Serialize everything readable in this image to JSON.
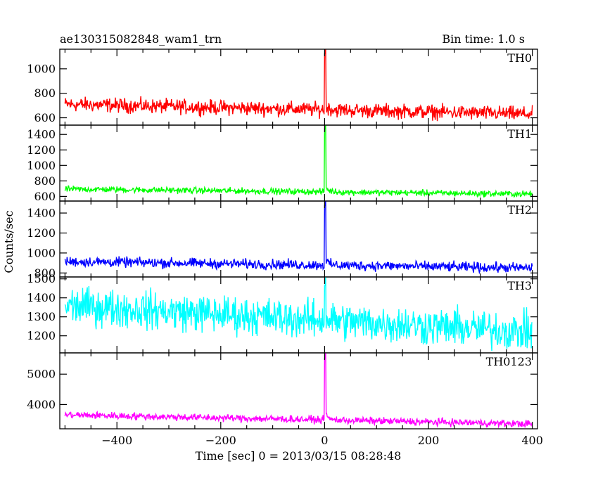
{
  "header": {
    "title": "ae130315082848_wam1_trn",
    "bin_time": "Bin time: 1.0 s"
  },
  "chart_data": {
    "type": "line",
    "ylabel": "Counts/sec",
    "xlabel": "Time [sec] 0 = 2013/03/15 08:28:48",
    "xlim": [
      -510,
      410
    ],
    "xticks": [
      -400,
      -200,
      0,
      200,
      400
    ],
    "panels": [
      {
        "name": "TH0",
        "color": "#ff0000",
        "ylim": [
          540,
          1160
        ],
        "yticks": [
          600,
          800,
          1000
        ],
        "baseline_start": 710,
        "baseline_end": 630,
        "noise_amplitude": 45,
        "peak": 1160,
        "peak_time": 2
      },
      {
        "name": "TH1",
        "color": "#00ff00",
        "ylim": [
          540,
          1520
        ],
        "yticks": [
          600,
          800,
          1000,
          1200,
          1400
        ],
        "baseline_start": 695,
        "baseline_end": 630,
        "noise_amplitude": 30,
        "peak": 1520,
        "peak_time": 2
      },
      {
        "name": "TH2",
        "color": "#0000ff",
        "ylim": [
          760,
          1520
        ],
        "yticks": [
          800,
          1000,
          1200,
          1400
        ],
        "baseline_start": 915,
        "baseline_end": 850,
        "noise_amplitude": 38,
        "peak": 1520,
        "peak_time": 2
      },
      {
        "name": "TH3",
        "color": "#00ffff",
        "ylim": [
          1110,
          1510
        ],
        "yticks": [
          1200,
          1300,
          1400,
          1500
        ],
        "baseline_start": 1360,
        "baseline_end": 1220,
        "noise_amplitude": 75,
        "peak": 1510,
        "peak_time": 2
      },
      {
        "name": "TH0123",
        "color": "#ff00ff",
        "ylim": [
          3200,
          5700
        ],
        "yticks": [
          4000,
          5000
        ],
        "baseline_start": 3660,
        "baseline_end": 3360,
        "noise_amplitude": 90,
        "peak": 5700,
        "peak_time": 2
      }
    ]
  }
}
